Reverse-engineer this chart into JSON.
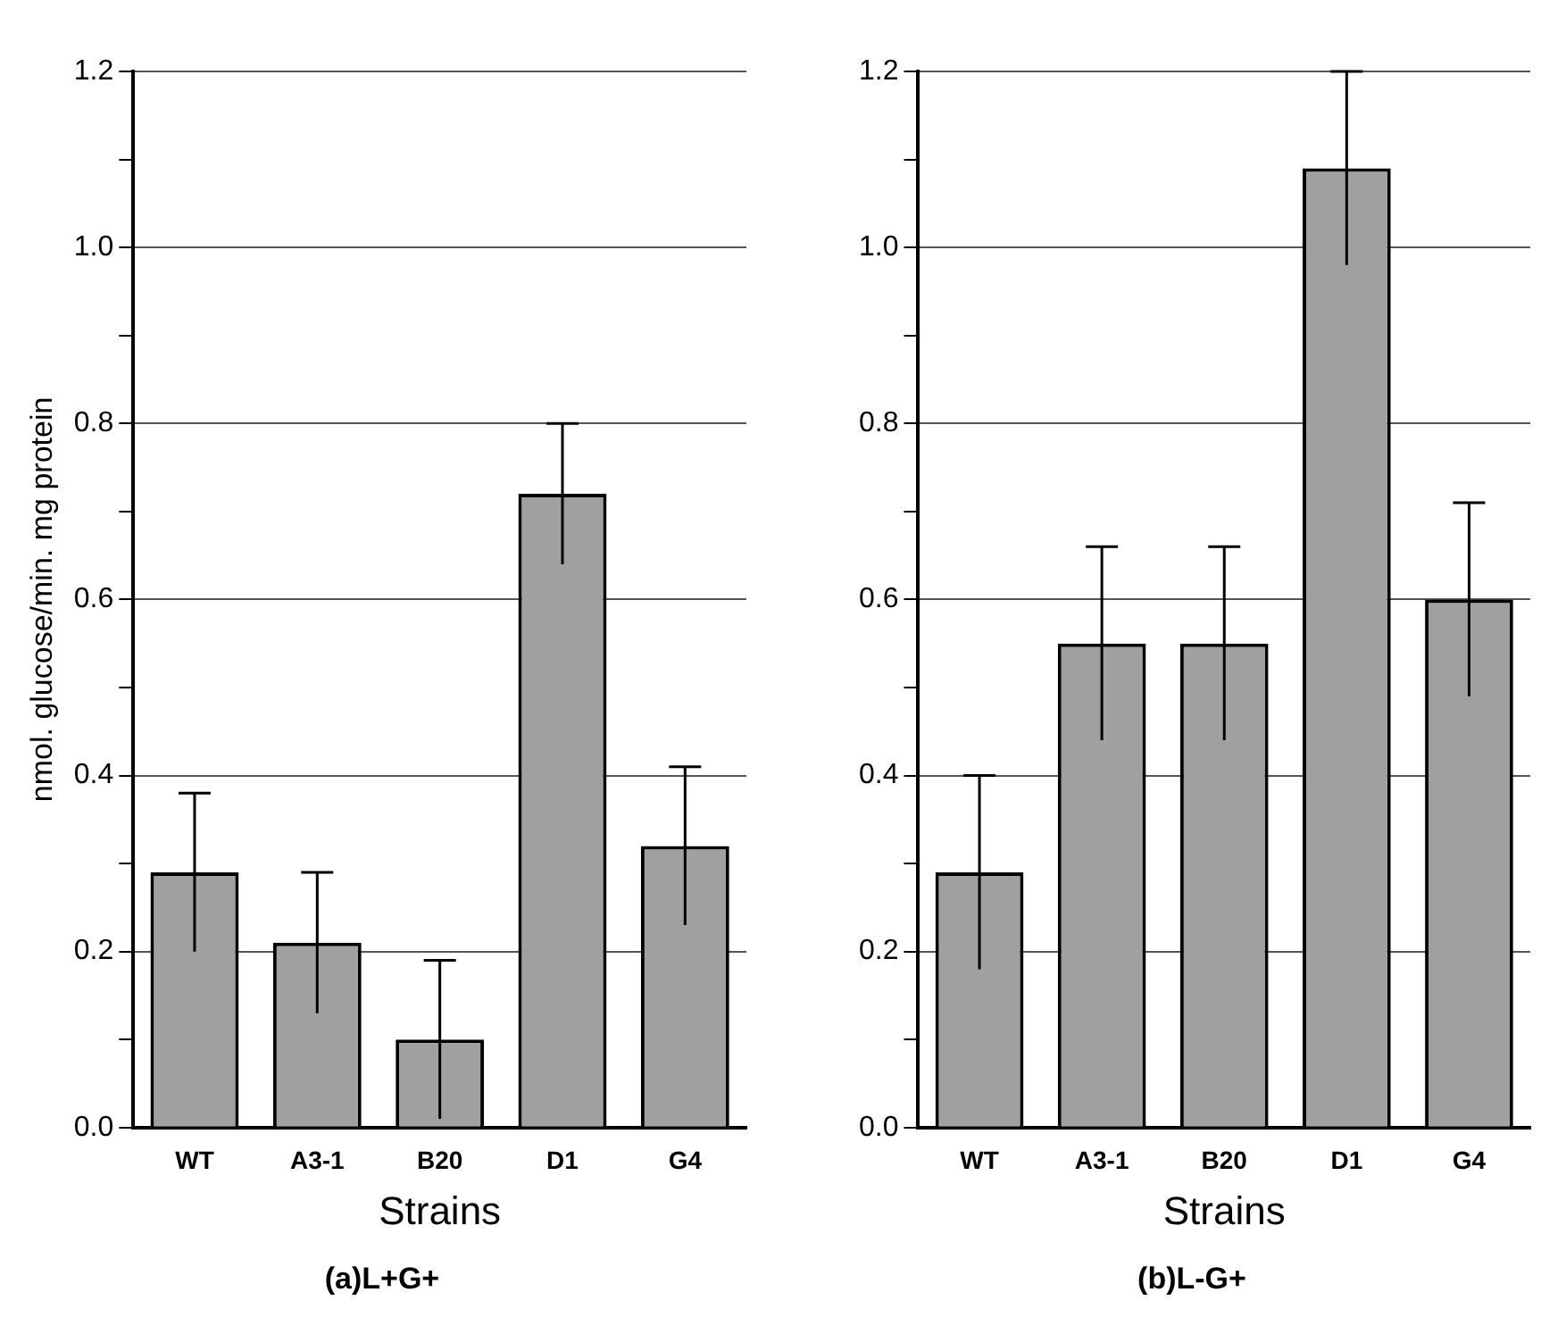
{
  "chart_data": [
    {
      "type": "bar",
      "title": "(a)L+G+",
      "xlabel": "Strains",
      "ylabel": "nmol. glucose/min. mg protein",
      "categories": [
        "WT",
        "A3-1",
        "B20",
        "D1",
        "G4"
      ],
      "values": [
        0.29,
        0.21,
        0.1,
        0.72,
        0.32
      ],
      "errors": [
        0.09,
        0.08,
        0.09,
        0.08,
        0.09
      ],
      "color": "#a0a0a0",
      "ylim": [
        0,
        1.2
      ],
      "yticks": [
        {
          "value": 0,
          "label": "0.0"
        },
        {
          "value": 0.1,
          "label": null
        },
        0.2,
        {
          "value": 0.3,
          "label": null
        },
        0.4,
        {
          "value": 0.5,
          "label": null
        },
        0.6,
        {
          "value": 0.7,
          "label": null
        },
        0.8,
        {
          "value": 0.9,
          "label": null
        },
        {
          "value": 1,
          "label": "1.0"
        },
        {
          "value": 1.1,
          "label": null
        },
        1.2
      ],
      "grid": "y"
    },
    {
      "type": "bar",
      "title": "(b)L-G+",
      "xlabel": "Strains",
      "categories": [
        "WT",
        "A3-1",
        "B20",
        "D1",
        "G4"
      ],
      "values": [
        0.29,
        0.55,
        0.55,
        1.09,
        0.6
      ],
      "errors": [
        0.11,
        0.11,
        0.11,
        0.11,
        0.11
      ],
      "color": "#a0a0a0",
      "ylim": [
        0,
        1.2
      ],
      "yticks": [
        {
          "value": 0,
          "label": "0.0"
        },
        {
          "value": 0.1,
          "label": null
        },
        0.2,
        {
          "value": 0.3,
          "label": null
        },
        0.4,
        {
          "value": 0.5,
          "label": null
        },
        0.6,
        {
          "value": 0.7,
          "label": null
        },
        0.8,
        {
          "value": 0.9,
          "label": null
        },
        {
          "value": 1,
          "label": "1.0"
        },
        {
          "value": 1.1,
          "label": null
        },
        1.2
      ],
      "grid": "y"
    }
  ]
}
